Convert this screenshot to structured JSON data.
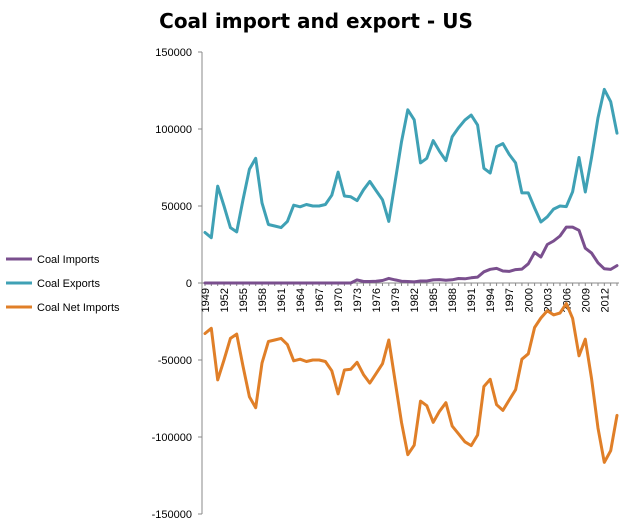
{
  "chart_data": {
    "type": "line",
    "title": "Coal import and export - US",
    "xlabel": "",
    "ylabel": "",
    "ylim": [
      -150000,
      150000
    ],
    "yticks": [
      150000,
      100000,
      50000,
      0,
      -50000,
      -100000,
      -150000
    ],
    "ytick_labels": [
      "150000",
      "100000",
      "50000",
      "0",
      "-50000",
      "-100000",
      "-150000"
    ],
    "x": [
      1949,
      1950,
      1951,
      1952,
      1953,
      1954,
      1955,
      1956,
      1957,
      1958,
      1959,
      1960,
      1961,
      1962,
      1963,
      1964,
      1965,
      1966,
      1967,
      1968,
      1969,
      1970,
      1971,
      1972,
      1973,
      1974,
      1975,
      1976,
      1977,
      1978,
      1979,
      1980,
      1981,
      1982,
      1983,
      1984,
      1985,
      1986,
      1987,
      1988,
      1989,
      1990,
      1991,
      1992,
      1993,
      1994,
      1995,
      1996,
      1997,
      1998,
      1999,
      2000,
      2001,
      2002,
      2003,
      2004,
      2005,
      2006,
      2007,
      2008,
      2009,
      2010,
      2011,
      2012,
      2013,
      2014
    ],
    "xtick_labels": [
      "1949",
      "1952",
      "1955",
      "1958",
      "1961",
      "1964",
      "1967",
      "1970",
      "1973",
      "1976",
      "1979",
      "1982",
      "1985",
      "1988",
      "1991",
      "1994",
      "1997",
      "2000",
      "2003",
      "2006",
      "2009",
      "2012"
    ],
    "grid": false,
    "legend_position": "left",
    "series": [
      {
        "name": "Coal Imports",
        "color": "#7a4f8e",
        "values": [
          0,
          0,
          0,
          0,
          0,
          0,
          0,
          0,
          0,
          0,
          0,
          0,
          0,
          0,
          0,
          0,
          0,
          0,
          0,
          0,
          0,
          0,
          0,
          0,
          2000,
          1000,
          1000,
          1200,
          1600,
          3000,
          2000,
          1200,
          1000,
          700,
          1300,
          1300,
          2000,
          2200,
          1800,
          2100,
          2900,
          2700,
          3400,
          3800,
          7300,
          8900,
          9500,
          7800,
          7500,
          8700,
          9000,
          12500,
          19800,
          16900,
          25000,
          27300,
          30500,
          36300,
          36300,
          34200,
          22600,
          19400,
          13100,
          9200,
          8800,
          11300
        ]
      },
      {
        "name": "Coal Exports",
        "color": "#3fa1b5",
        "values": [
          32800,
          29400,
          62900,
          50000,
          36000,
          33200,
          54000,
          73800,
          81000,
          52000,
          38000,
          37000,
          36000,
          40000,
          50500,
          49500,
          51000,
          50000,
          50000,
          51000,
          57000,
          72000,
          56500,
          56000,
          53500,
          60500,
          66000,
          60000,
          54000,
          40000,
          66000,
          91700,
          112500,
          106000,
          78000,
          81000,
          92500,
          85500,
          79500,
          95000,
          100800,
          105800,
          109000,
          102500,
          74500,
          71400,
          88500,
          90500,
          83500,
          78000,
          58500,
          58500,
          48700,
          39600,
          43000,
          48000,
          50000,
          49600,
          59200,
          81500,
          59100,
          81700,
          107300,
          125700,
          117700,
          97300
        ]
      },
      {
        "name": "Coal Net Imports",
        "color": "#e07f28",
        "values": [
          -32800,
          -29400,
          -62900,
          -50000,
          -36000,
          -33200,
          -54000,
          -73800,
          -81000,
          -52000,
          -38000,
          -37000,
          -36000,
          -40000,
          -50500,
          -49500,
          -51000,
          -50000,
          -50000,
          -51000,
          -57000,
          -72000,
          -56500,
          -56000,
          -51500,
          -59500,
          -65000,
          -58800,
          -52400,
          -37000,
          -64000,
          -90500,
          -111500,
          -105300,
          -76700,
          -79700,
          -90500,
          -83300,
          -77700,
          -92900,
          -97900,
          -103100,
          -105600,
          -98700,
          -67200,
          -62500,
          -79000,
          -82700,
          -76000,
          -69300,
          -49500,
          -46000,
          -28900,
          -22700,
          -18000,
          -20700,
          -19500,
          -13300,
          -22900,
          -47300,
          -36500,
          -62300,
          -94200,
          -116500,
          -108900,
          -86000
        ]
      }
    ]
  }
}
